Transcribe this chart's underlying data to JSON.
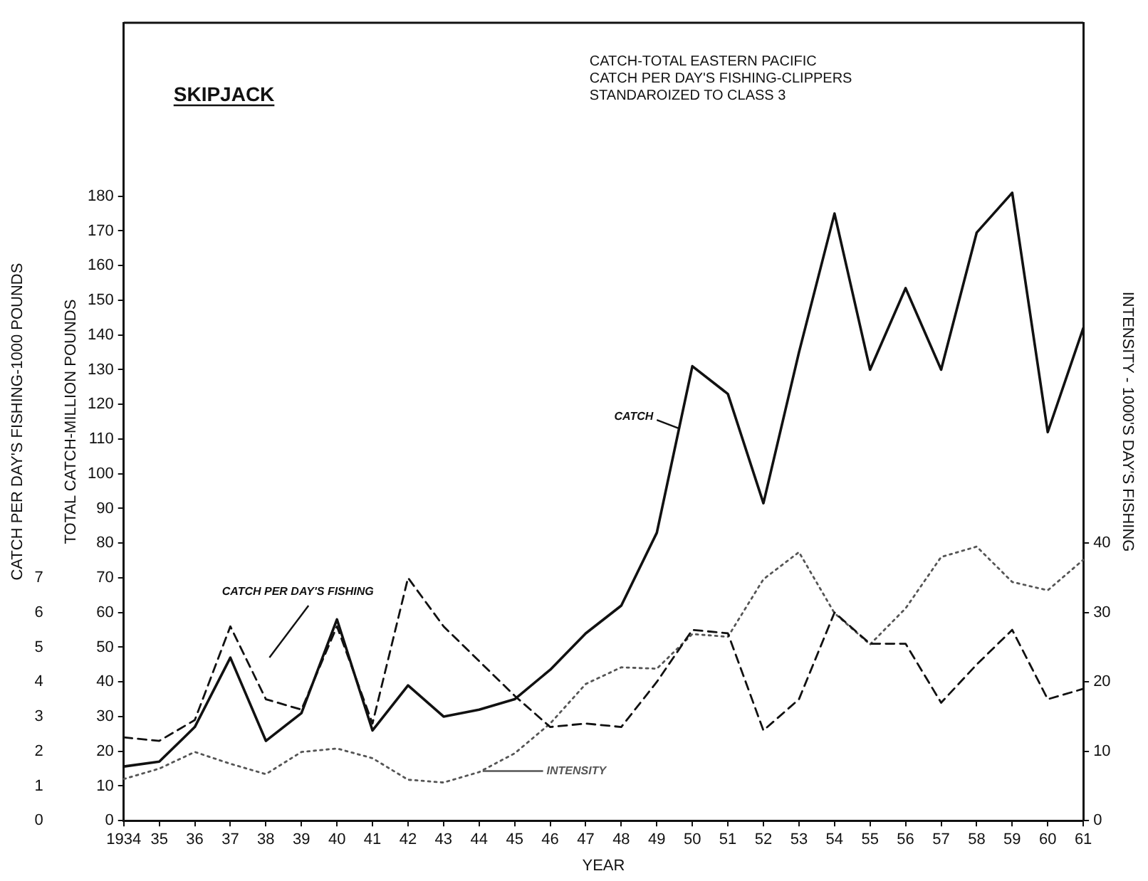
{
  "chart_data": {
    "type": "line",
    "title": "SKIPJACK",
    "subtitle": "CATCH-TOTAL EASTERN PACIFIC\nCATCH PER DAY'S FISHING-CLIPPERS\nSTANDAROIZED TO CLASS 3",
    "xlabel": "YEAR",
    "ylabel": "TOTAL CATCH-MILLION POUNDS",
    "y2label": "INTENSITY - 1000'S DAY'S FISHING",
    "y3label": "CATCH PER DAY'S FISHING-1000 POUNDS",
    "categories": [
      "1934",
      "35",
      "36",
      "37",
      "38",
      "39",
      "40",
      "41",
      "42",
      "43",
      "44",
      "45",
      "46",
      "47",
      "48",
      "49",
      "50",
      "51",
      "52",
      "53",
      "54",
      "55",
      "56",
      "57",
      "58",
      "59",
      "60",
      "61"
    ],
    "ylim": [
      0,
      230
    ],
    "yticks": [
      0,
      10,
      20,
      30,
      40,
      50,
      60,
      70,
      80,
      90,
      100,
      110,
      120,
      130,
      140,
      150,
      160,
      170,
      180
    ],
    "y2lim": [
      0,
      115
    ],
    "y2ticks": [
      0,
      10,
      20,
      30,
      40
    ],
    "y3lim": [
      0,
      23
    ],
    "y3ticks": [
      0,
      1,
      2,
      3,
      4,
      5,
      6,
      7
    ],
    "grid": false,
    "legend": false,
    "marker": "none",
    "series": [
      {
        "name": "CATCH",
        "color": "#111111",
        "line_style": "solid",
        "values": [
          15.6,
          17,
          27,
          47,
          23,
          31,
          58,
          26,
          39,
          30,
          32,
          35,
          43.5,
          54,
          62,
          83,
          131,
          123,
          91.5,
          135,
          175,
          130,
          153.5,
          130,
          169.5,
          181,
          112,
          142
        ]
      },
      {
        "name": "CATCH PER DAY'S FISHING",
        "color": "#111111",
        "line_style": "dashed",
        "axis": "y3",
        "values": [
          2.4,
          2.3,
          2.9,
          5.6,
          3.5,
          3.2,
          5.6,
          2.8,
          7.0,
          5.6,
          4.6,
          3.6,
          2.7,
          2.8,
          2.7,
          4.0,
          5.5,
          5.4,
          2.6,
          3.5,
          6.0,
          5.1,
          5.1,
          3.4,
          4.5,
          5.5,
          3.5,
          3.8
        ]
      },
      {
        "name": "INTENSITY",
        "color": "#555555",
        "line_style": "dotted",
        "axis": "y2",
        "values": [
          6.0,
          7.5,
          9.9,
          8.2,
          6.7,
          9.9,
          10.4,
          9.0,
          5.9,
          5.5,
          7.0,
          9.7,
          14.0,
          19.7,
          22.1,
          21.9,
          26.9,
          26.5,
          34.8,
          38.7,
          29.9,
          25.4,
          30.6,
          38.0,
          39.5,
          34.4,
          33.2,
          37.6
        ]
      }
    ]
  }
}
